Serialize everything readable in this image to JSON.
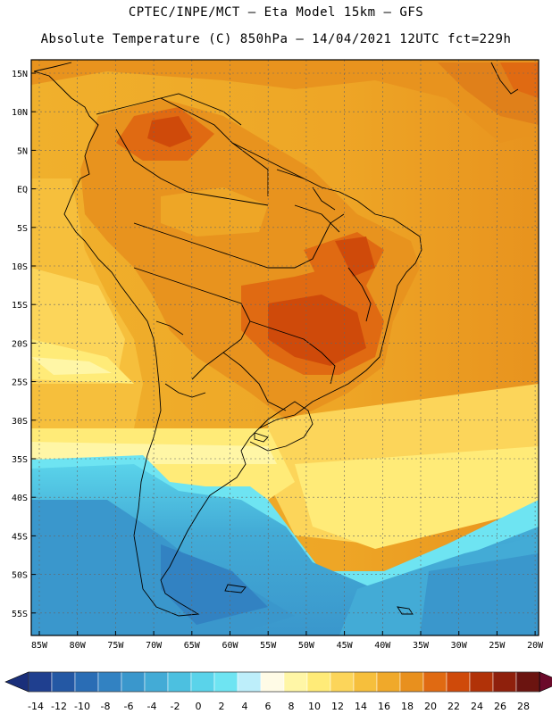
{
  "header": {
    "title_line1": "CPTEC/INPE/MCT –  Eta Model 15km – GFS",
    "title_line2": "Absolute Temperature (C) 850hPa – 14/04/2021 12UTC fct=229h"
  },
  "axes": {
    "lat_labels": [
      "15N",
      "10N",
      "5N",
      "EQ",
      "5S",
      "10S",
      "15S",
      "20S",
      "25S",
      "30S",
      "35S",
      "40S",
      "45S",
      "50S",
      "55S"
    ],
    "lon_labels": [
      "85W",
      "80W",
      "75W",
      "70W",
      "65W",
      "60W",
      "55W",
      "50W",
      "45W",
      "40W",
      "35W",
      "30W",
      "25W",
      "20W"
    ]
  },
  "legend": {
    "values": [
      "-14",
      "-12",
      "-10",
      "-8",
      "-6",
      "-4",
      "-2",
      "0",
      "2",
      "4",
      "6",
      "8",
      "10",
      "12",
      "14",
      "16",
      "18",
      "20",
      "22",
      "24",
      "26",
      "28"
    ],
    "colors": [
      "#1f3f8f",
      "#2458a4",
      "#2a6db5",
      "#3282c2",
      "#3a97cc",
      "#43abd6",
      "#4cc0e0",
      "#5ad3ea",
      "#6ee4f2",
      "#bdeefa",
      "#fffbe6",
      "#fff6a6",
      "#ffeb78",
      "#fcd55a",
      "#f6bf3c",
      "#f0a92a",
      "#e8901e",
      "#e06a12",
      "#cf4a0a",
      "#b13208",
      "#8f200c",
      "#6b1410"
    ],
    "below_color": "#1a2f7a",
    "above_color": "#6b0a2a"
  }
}
